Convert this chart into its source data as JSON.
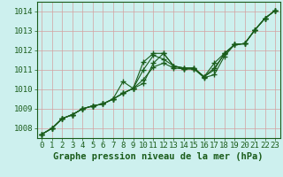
{
  "bg_color": "#cdf0ee",
  "grid_color": "#d4a0a0",
  "line_color": "#1a5c1a",
  "marker_color": "#1a5c1a",
  "xlabel": "Graphe pression niveau de la mer (hPa)",
  "xlim": [
    -0.5,
    23.5
  ],
  "ylim": [
    1007.5,
    1014.5
  ],
  "yticks": [
    1008,
    1009,
    1010,
    1011,
    1012,
    1013,
    1014
  ],
  "xticks": [
    0,
    1,
    2,
    3,
    4,
    5,
    6,
    7,
    8,
    9,
    10,
    11,
    12,
    13,
    14,
    15,
    16,
    17,
    18,
    19,
    20,
    21,
    22,
    23
  ],
  "series": [
    [
      1007.7,
      1008.0,
      1008.5,
      1008.7,
      1009.0,
      1009.15,
      1009.25,
      1009.5,
      1009.8,
      1010.05,
      1011.4,
      1011.85,
      1011.85,
      1011.2,
      1011.05,
      1011.05,
      1010.65,
      1011.35,
      1011.85,
      1012.3,
      1012.35,
      1013.05,
      1013.65,
      1014.05
    ],
    [
      1007.7,
      1008.0,
      1008.5,
      1008.7,
      1009.0,
      1009.15,
      1009.25,
      1009.5,
      1009.8,
      1010.05,
      1010.5,
      1011.15,
      1011.35,
      1011.1,
      1011.05,
      1011.05,
      1010.6,
      1010.75,
      1011.7,
      1012.3,
      1012.35,
      1013.05,
      1013.65,
      1014.05
    ],
    [
      1007.7,
      1008.0,
      1008.5,
      1008.7,
      1009.0,
      1009.15,
      1009.25,
      1009.5,
      1009.8,
      1010.05,
      1010.3,
      1011.35,
      1011.85,
      1011.2,
      1011.1,
      1011.1,
      1010.65,
      1011.0,
      1011.85,
      1012.3,
      1012.35,
      1013.05,
      1013.65,
      1014.05
    ],
    [
      1007.7,
      1008.0,
      1008.5,
      1008.7,
      1009.0,
      1009.15,
      1009.25,
      1009.5,
      1010.4,
      1010.05,
      1011.0,
      1011.75,
      1011.55,
      1011.2,
      1011.1,
      1011.1,
      1010.65,
      1011.1,
      1011.8,
      1012.3,
      1012.35,
      1013.05,
      1013.65,
      1014.05
    ]
  ],
  "xlabel_fontsize": 7.5,
  "tick_fontsize": 6.5
}
